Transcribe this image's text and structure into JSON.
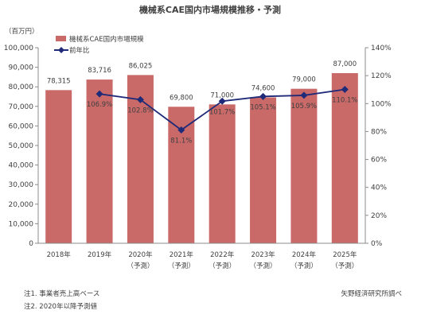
{
  "colors": {
    "bar": "#c96a69",
    "line": "#1f2a78",
    "axis": "#8c8c8c",
    "grid": "#e8e8e8"
  },
  "chart_data": {
    "type": "bar+line",
    "title": "機械系CAE国内市場規模推移・予測",
    "unit_label": "（百万円）",
    "categories": [
      [
        "2018年",
        ""
      ],
      [
        "2019年",
        ""
      ],
      [
        "2020年",
        "（予測）"
      ],
      [
        "2021年",
        "（予測）"
      ],
      [
        "2022年",
        "（予測）"
      ],
      [
        "2023年",
        "（予測）"
      ],
      [
        "2024年",
        "（予測）"
      ],
      [
        "2025年",
        "（予測）"
      ]
    ],
    "series": [
      {
        "name": "機械系CAE国内市場規模",
        "type": "bar",
        "axis": "left",
        "values": [
          78315,
          83716,
          86025,
          69800,
          71000,
          74600,
          79000,
          87000
        ],
        "labels": [
          "78,315",
          "83,716",
          "86,025",
          "69,800",
          "71,000",
          "74,600",
          "79,000",
          "87,000"
        ]
      },
      {
        "name": "前年比",
        "type": "line",
        "axis": "right",
        "values": [
          null,
          106.9,
          102.8,
          81.1,
          101.7,
          105.1,
          105.9,
          110.1
        ],
        "labels": [
          "",
          "106.9%",
          "102.8%",
          "81.1%",
          "101.7%",
          "105.1%",
          "105.9%",
          "110.1%"
        ]
      }
    ],
    "y_left": {
      "min": 0,
      "max": 100000,
      "step": 10000,
      "ticks": [
        "0",
        "10,000",
        "20,000",
        "30,000",
        "40,000",
        "50,000",
        "60,000",
        "70,000",
        "80,000",
        "90,000",
        "100,000"
      ]
    },
    "y_right": {
      "min": 0,
      "max": 140,
      "step": 20,
      "ticks": [
        "0%",
        "20%",
        "40%",
        "60%",
        "80%",
        "100%",
        "120%",
        "140%"
      ]
    },
    "legend_position": "top-left"
  },
  "notes": {
    "note1": "注1. 事業者売上高ベース",
    "note2": "注2. 2020年以降予測値",
    "source": "矢野経済研究所調べ"
  }
}
